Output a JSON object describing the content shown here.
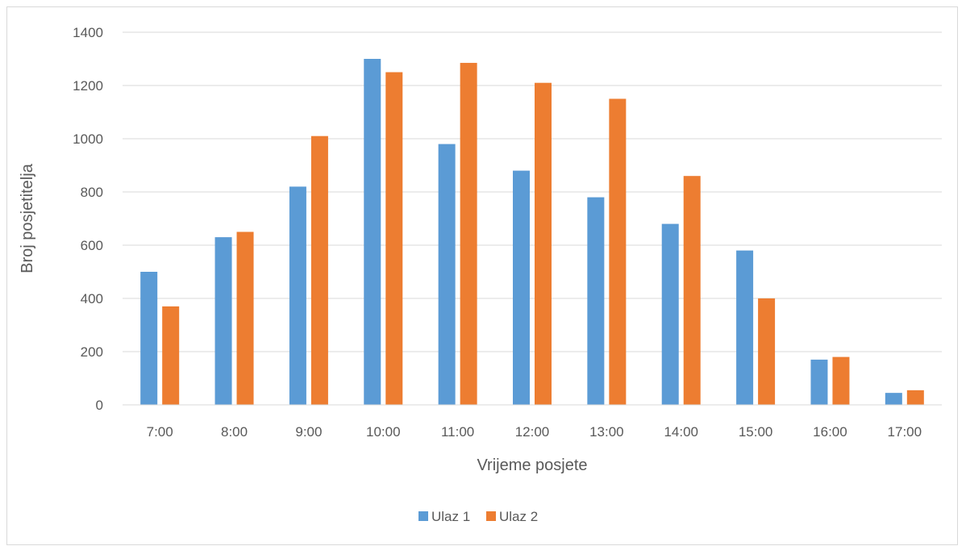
{
  "chart_data": {
    "type": "bar",
    "categories": [
      "7:00",
      "8:00",
      "9:00",
      "10:00",
      "11:00",
      "12:00",
      "13:00",
      "14:00",
      "15:00",
      "16:00",
      "17:00"
    ],
    "series": [
      {
        "name": "Ulaz 1",
        "color": "#5b9bd5",
        "values": [
          500,
          630,
          820,
          1300,
          980,
          880,
          780,
          680,
          580,
          170,
          45
        ]
      },
      {
        "name": "Ulaz 2",
        "color": "#ed7d31",
        "values": [
          370,
          650,
          1010,
          1250,
          1285,
          1210,
          1150,
          860,
          400,
          180,
          55
        ]
      }
    ],
    "title": "",
    "xlabel": "Vrijeme posjete",
    "ylabel": "Broj posjetitelja",
    "ylim": [
      0,
      1400
    ],
    "yticks": [
      0,
      200,
      400,
      600,
      800,
      1000,
      1200,
      1400
    ],
    "grid": true,
    "legend_position": "bottom"
  }
}
